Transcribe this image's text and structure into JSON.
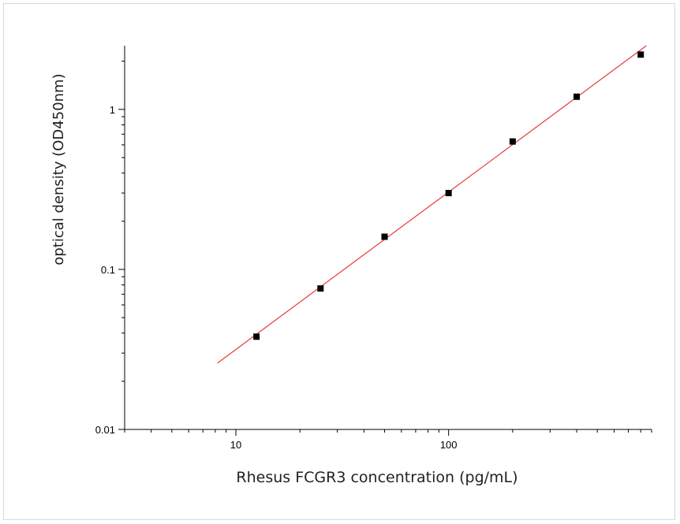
{
  "chart_data": {
    "type": "scatter",
    "title": "",
    "xlabel": "Rhesus FCGR3 concentration (pg/mL)",
    "ylabel": "optical density (OD450nm)",
    "x_scale": "log",
    "y_scale": "log",
    "xlim": [
      3,
      900
    ],
    "ylim": [
      0.01,
      2.5
    ],
    "x_ticks": [
      {
        "value": 10,
        "label": "10"
      },
      {
        "value": 100,
        "label": "100"
      }
    ],
    "y_ticks": [
      {
        "value": 0.01,
        "label": "0.01"
      },
      {
        "value": 0.1,
        "label": "0.1"
      },
      {
        "value": 1,
        "label": "1"
      }
    ],
    "grid": false,
    "series": [
      {
        "marker": "square",
        "color": "#000000",
        "points": [
          {
            "x": 12.5,
            "y": 0.038
          },
          {
            "x": 25,
            "y": 0.076
          },
          {
            "x": 50,
            "y": 0.16
          },
          {
            "x": 100,
            "y": 0.3
          },
          {
            "x": 200,
            "y": 0.63
          },
          {
            "x": 400,
            "y": 1.2
          },
          {
            "x": 800,
            "y": 2.2
          }
        ]
      }
    ],
    "fit_line": {
      "color": "#e8393a",
      "points": [
        {
          "x": 8.2,
          "y": 0.026
        },
        {
          "x": 850,
          "y": 2.5
        }
      ]
    }
  }
}
